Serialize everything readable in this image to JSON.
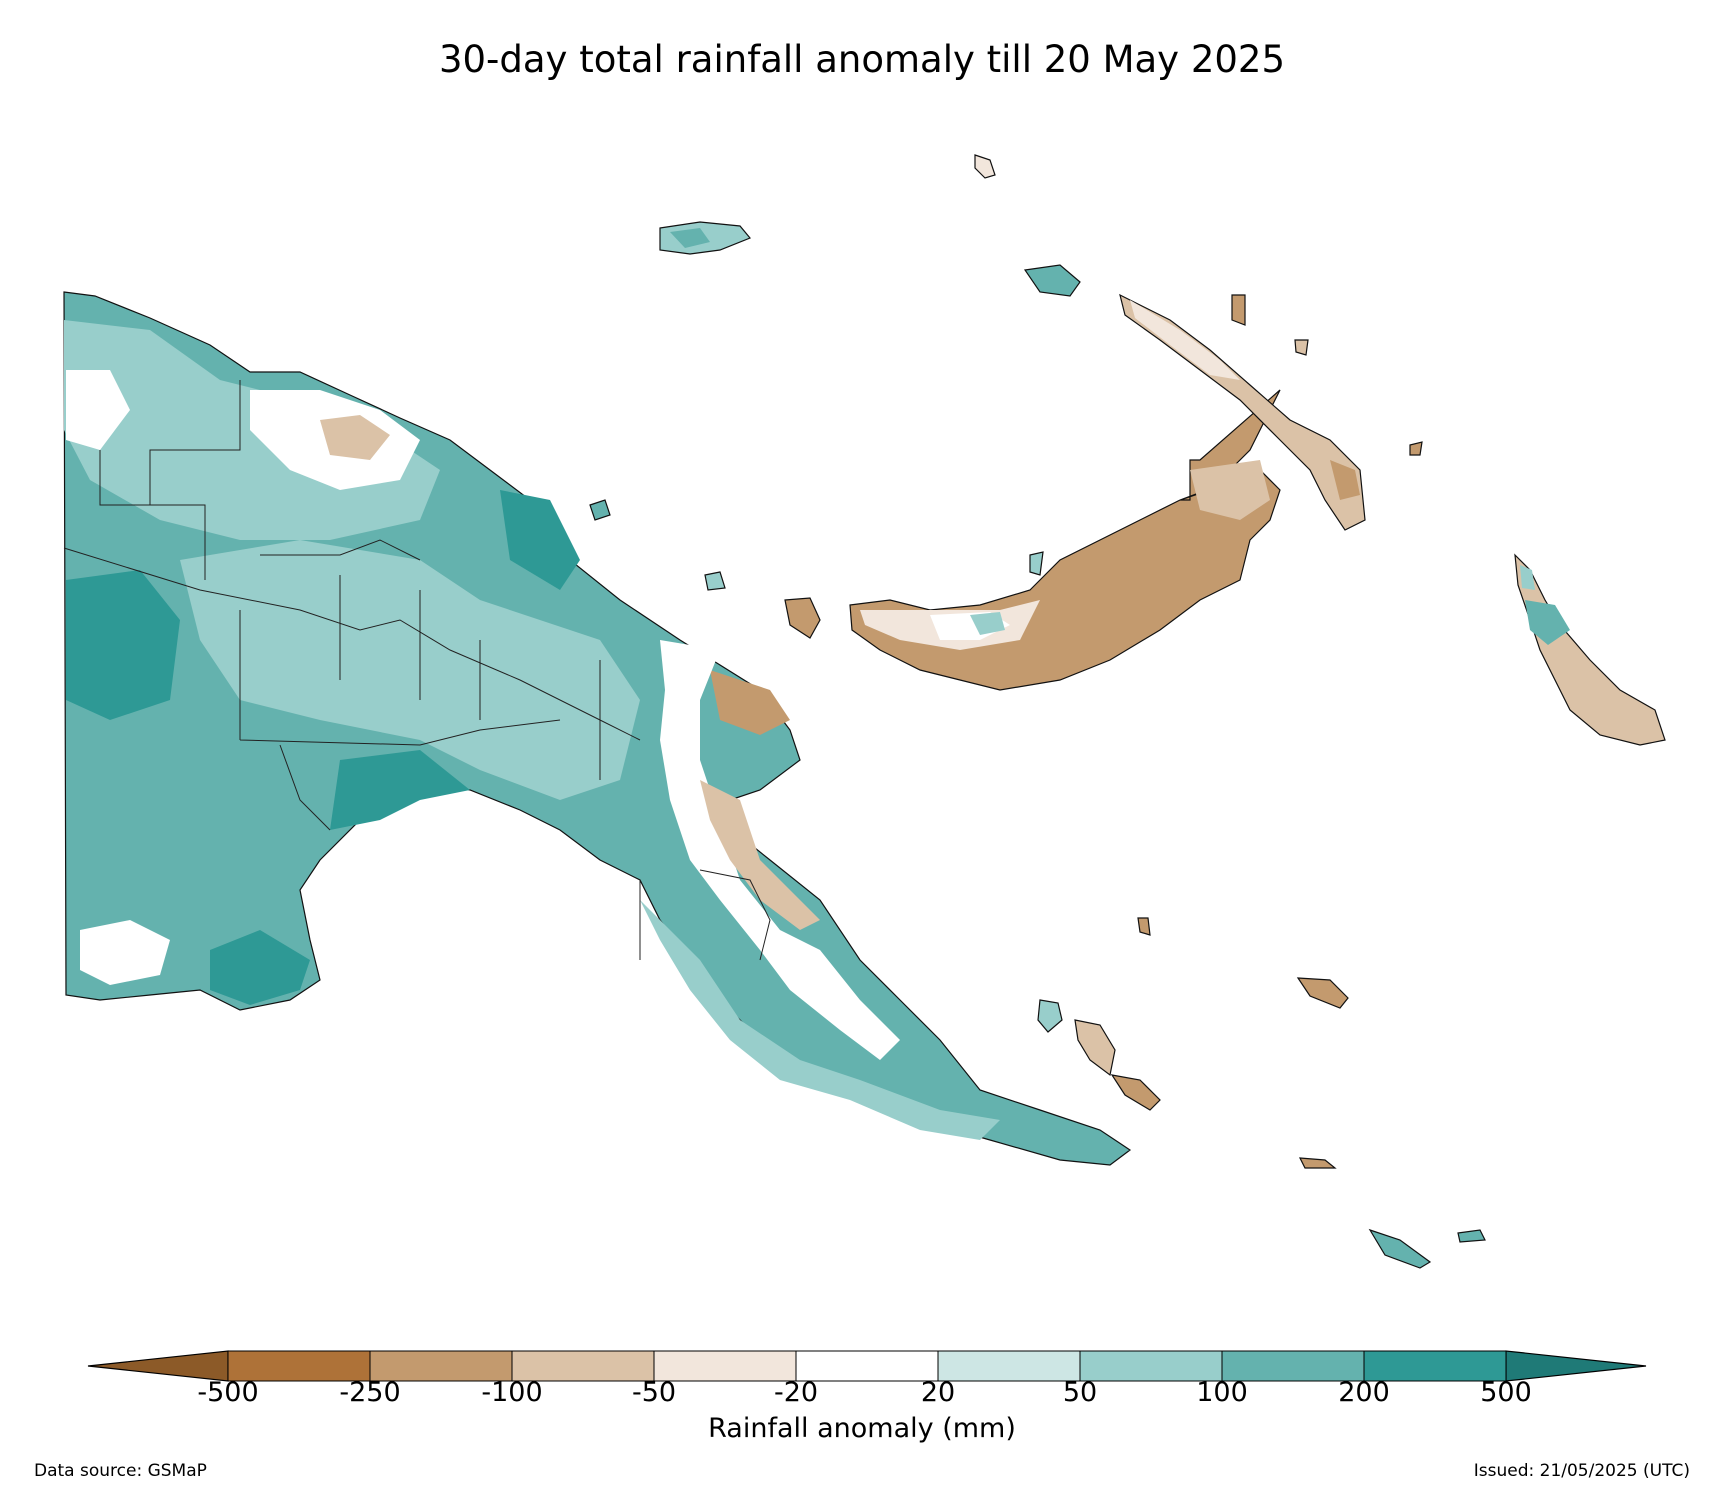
{
  "title": "30-day total rainfall anomaly till 20 May 2025",
  "colorbar": {
    "label": "Rainfall anomaly (mm)",
    "ticks": [
      "-500",
      "-250",
      "-100",
      "-50",
      "-20",
      "20",
      "50",
      "100",
      "200",
      "500"
    ],
    "colors": [
      "#ae7238",
      "#c39a6e",
      "#dbc2a7",
      "#f2e6dc",
      "#ffffff",
      "#cde6e4",
      "#98cecb",
      "#64b2ae",
      "#2e9995"
    ],
    "under_color": "#8c5a28",
    "over_color": "#1f7a77"
  },
  "footer": {
    "source": "Data source: GSMaP",
    "issued": "Issued: 21/05/2025 (UTC)"
  },
  "map_regions": [
    "mainland-west",
    "mainland-highlands",
    "mainland-east-coast",
    "new-britain",
    "new-ireland",
    "bougainville",
    "manus",
    "milne-bay-islands"
  ]
}
